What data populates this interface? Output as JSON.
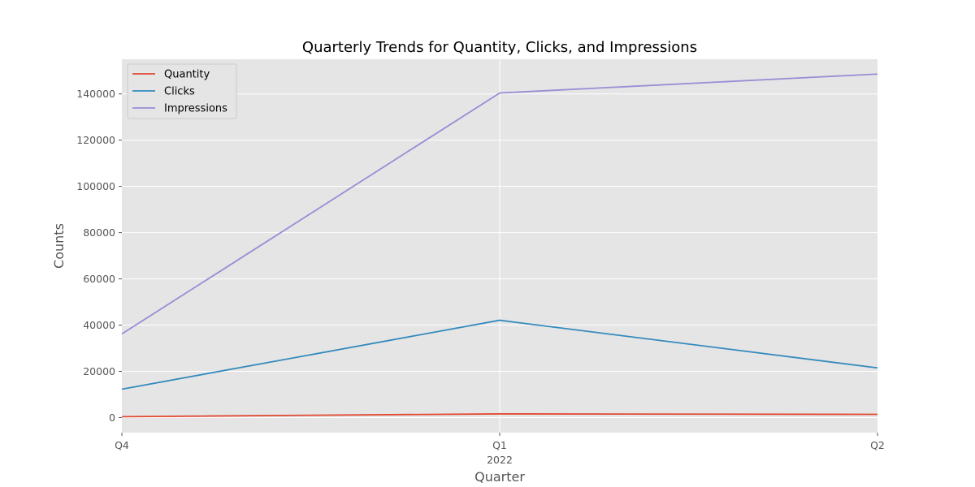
{
  "chart_data": {
    "type": "line",
    "title": "Quarterly Trends for Quantity, Clicks, and Impressions",
    "xlabel": "Quarter",
    "ylabel": "Counts",
    "categories": [
      "Q4",
      "Q1",
      "Q2"
    ],
    "x_sublabels": [
      "",
      "2022",
      ""
    ],
    "ylim": [
      -6500,
      155000
    ],
    "yticks": [
      0,
      20000,
      40000,
      60000,
      80000,
      100000,
      120000,
      140000
    ],
    "grid": true,
    "legend_position": "top-left",
    "series": [
      {
        "name": "Quantity",
        "color": "#e24a33",
        "values": [
          400,
          1600,
          1400
        ]
      },
      {
        "name": "Clicks",
        "color": "#348abd",
        "values": [
          12300,
          42100,
          21500
        ]
      },
      {
        "name": "Impressions",
        "color": "#988ed5",
        "values": [
          36200,
          140400,
          148600
        ]
      }
    ]
  }
}
